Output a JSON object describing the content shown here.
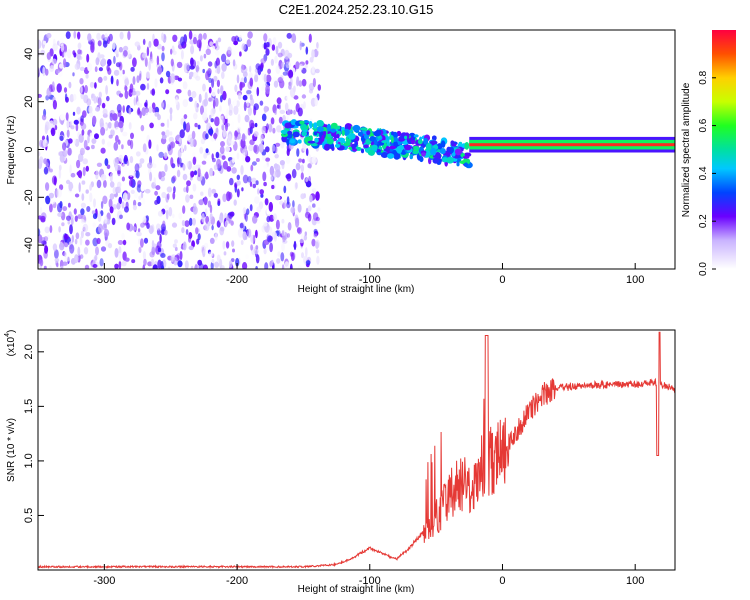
{
  "chart_data": [
    {
      "type": "heatmap",
      "title": "C2E1.2024.252.23.10.G15",
      "xlabel": "Height of straight line (km)",
      "ylabel": "Frequency (Hz)",
      "xlim": [
        -350,
        130
      ],
      "ylim": [
        -50,
        50
      ],
      "x_ticks": [
        -300,
        -200,
        -100,
        0,
        100
      ],
      "x_tick_labels": [
        "-300",
        "-200",
        "-100",
        "0",
        "100"
      ],
      "y_ticks": [
        -40,
        -20,
        0,
        20,
        40
      ],
      "y_tick_labels": [
        "-40",
        "-20",
        "0",
        "20",
        "40"
      ],
      "colorbar": {
        "label": "Normalized spectral amplitude",
        "range": [
          0,
          1
        ],
        "ticks": [
          0.0,
          0.2,
          0.4,
          0.6,
          0.8
        ],
        "tick_labels": [
          "0.0",
          "0.2",
          "0.4",
          "0.6",
          "0.8"
        ]
      },
      "regions": [
        {
          "name": "broadband noise",
          "x_range": [
            -350,
            -138
          ],
          "freq_range": [
            -50,
            48
          ],
          "amplitude": [
            0.0,
            0.25
          ]
        },
        {
          "name": "scattered transition",
          "x_range": [
            -165,
            -25
          ],
          "freq_center": [
            8,
            5,
            3,
            0,
            -2
          ],
          "amplitude": [
            0.2,
            0.55
          ]
        },
        {
          "name": "narrow tone",
          "x_range": [
            -25,
            130
          ],
          "freq_center": 2,
          "bandwidth": 4,
          "amplitude": [
            0.6,
            0.95
          ]
        }
      ]
    },
    {
      "type": "line",
      "title": "",
      "xlabel": "Height of straight line (km)",
      "ylabel": "SNR (10 * v/v)",
      "y_multiplier": "(x10",
      "y_multiplier_exp": "4",
      "xlim": [
        -350,
        130
      ],
      "ylim": [
        0,
        2.2
      ],
      "x_ticks": [
        -300,
        -200,
        -100,
        0,
        100
      ],
      "x_tick_labels": [
        "-300",
        "-200",
        "-100",
        "0",
        "100"
      ],
      "y_ticks": [
        0.5,
        1.0,
        1.5,
        2.0
      ],
      "y_tick_labels": [
        "0.5",
        "1.0",
        "1.5",
        "2.0"
      ],
      "series": [
        {
          "name": "SNR",
          "color": "#e53935",
          "x": [
            -350,
            -300,
            -250,
            -200,
            -150,
            -125,
            -115,
            -100,
            -90,
            -80,
            -70,
            -60,
            -50,
            -40,
            -30,
            -20,
            -12,
            -10,
            0,
            10,
            20,
            30,
            40,
            60,
            80,
            100,
            115,
            130
          ],
          "y": [
            0.03,
            0.03,
            0.03,
            0.03,
            0.03,
            0.05,
            0.1,
            0.2,
            0.15,
            0.1,
            0.2,
            0.35,
            0.45,
            0.7,
            0.8,
            0.75,
            0.9,
            1.0,
            1.05,
            1.25,
            1.45,
            1.6,
            1.67,
            1.69,
            1.7,
            1.7,
            1.72,
            1.65
          ]
        }
      ]
    }
  ]
}
